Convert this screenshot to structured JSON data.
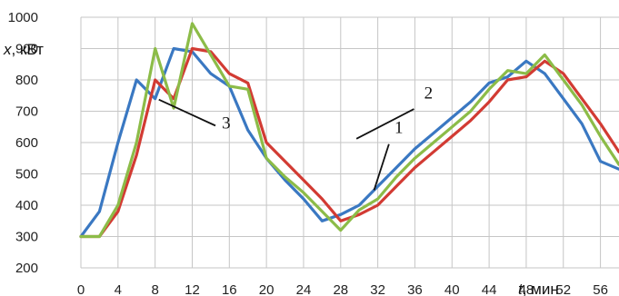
{
  "chart_data": {
    "type": "line",
    "ylabel_var": "x",
    "ylabel_unit": ", кВт",
    "xlabel_var": "t",
    "xlabel_unit": ", мин",
    "xlim": [
      0,
      58
    ],
    "ylim": [
      200,
      1000
    ],
    "x_ticks": [
      0,
      4,
      8,
      12,
      16,
      20,
      24,
      28,
      32,
      36,
      40,
      44,
      48,
      52,
      56
    ],
    "y_ticks": [
      200,
      300,
      400,
      500,
      600,
      700,
      800,
      900,
      1000
    ],
    "grid": true,
    "series": [
      {
        "color": "#3a78c2",
        "x": [
          0,
          2,
          4,
          6,
          8,
          10,
          12,
          14,
          16,
          18,
          20,
          22,
          24,
          26,
          28,
          30,
          32,
          34,
          36,
          38,
          40,
          42,
          44,
          46,
          48,
          50,
          52,
          54,
          56,
          58
        ],
        "y": [
          300,
          380,
          600,
          800,
          740,
          900,
          890,
          820,
          780,
          640,
          550,
          480,
          420,
          350,
          370,
          400,
          460,
          520,
          580,
          630,
          680,
          730,
          790,
          810,
          860,
          820,
          740,
          660,
          540,
          515
        ]
      },
      {
        "color": "#d23b33",
        "x": [
          0,
          2,
          4,
          6,
          8,
          10,
          12,
          14,
          16,
          18,
          20,
          22,
          24,
          26,
          28,
          30,
          32,
          34,
          36,
          38,
          40,
          42,
          44,
          46,
          48,
          50,
          52,
          54,
          56,
          58
        ],
        "y": [
          300,
          300,
          380,
          560,
          800,
          740,
          900,
          890,
          820,
          790,
          600,
          540,
          480,
          420,
          350,
          370,
          400,
          460,
          520,
          570,
          620,
          670,
          730,
          800,
          810,
          860,
          820,
          740,
          660,
          570
        ]
      },
      {
        "color": "#8cbc48",
        "x": [
          0,
          2,
          4,
          6,
          8,
          10,
          12,
          14,
          16,
          18,
          20,
          22,
          24,
          26,
          28,
          30,
          32,
          34,
          36,
          38,
          40,
          42,
          44,
          46,
          48,
          50,
          52,
          54,
          56,
          58
        ],
        "y": [
          300,
          300,
          400,
          600,
          900,
          710,
          980,
          880,
          780,
          770,
          550,
          490,
          440,
          380,
          320,
          385,
          420,
          490,
          550,
          600,
          650,
          700,
          770,
          830,
          820,
          880,
          800,
          720,
          620,
          530
        ]
      }
    ],
    "callouts": [
      {
        "label": "1",
        "text_x": 33.8,
        "text_y": 631,
        "line": [
          [
            33.2,
            595
          ],
          [
            31.6,
            448
          ]
        ]
      },
      {
        "label": "2",
        "text_x": 37.0,
        "text_y": 740,
        "line": [
          [
            35.9,
            707
          ],
          [
            29.7,
            612
          ]
        ]
      },
      {
        "label": "3",
        "text_x": 15.2,
        "text_y": 645,
        "line": [
          [
            14.5,
            654
          ],
          [
            8.4,
            737
          ]
        ]
      }
    ]
  }
}
